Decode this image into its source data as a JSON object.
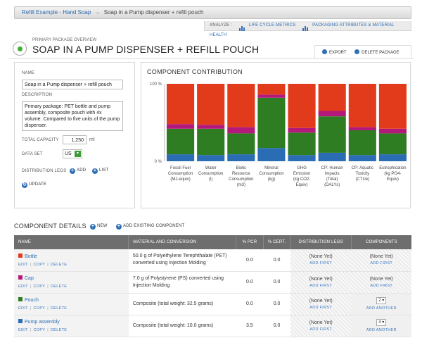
{
  "breadcrumb": {
    "link": "Refill Example - Hand Soap",
    "arrow": "→",
    "current": "Soap in a Pump dispenser + refill pouch"
  },
  "analyze": {
    "label": "ANALYZE :",
    "life_cycle": "LIFE CYCLE METRICS",
    "packaging": "PACKAGING ATTRIBUTES & MATERIAL HEALTH"
  },
  "header": {
    "overview_label": "PRIMARY PACKAGE OVERVIEW",
    "title": "SOAP IN A PUMP DISPENSER + REFILL POUCH",
    "export_label": "EXPORT",
    "delete_label": "DELETE PACKAGE"
  },
  "form": {
    "name_label": "NAME",
    "name_value": "Soap in a Pump dispenser + refill pouch",
    "description_label": "DESCRIPTION",
    "description_value": "Primary package: PET bottle and pump assembly, composite pouch with 4x volume. Compared to five units of the pump dispenser.",
    "capacity_label": "TOTAL CAPACITY",
    "capacity_value": "1,250",
    "capacity_unit": "ml",
    "dataset_label": "DATA SET",
    "dataset_value": "US",
    "legs_label": "DISTRIBUTION LEGS",
    "add_label": "ADD",
    "list_label": "LIST",
    "update_label": "UPDATE"
  },
  "chart_data": {
    "type": "bar",
    "stacked": true,
    "percent": true,
    "title": "COMPONENT CONTRIBUTION",
    "ytick_top": "100 %",
    "ytick_bottom": "0 %",
    "ylim": [
      0,
      100
    ],
    "categories": [
      "Fossil Fuel Consumption (MJ-equiv)",
      "Water Consumption (l)",
      "Biotic Resource Consumption (m3)",
      "Mineral Consumption (kg)",
      "GHG Emission (kg CO2-Equiv)",
      "CP: Human Impacts (Total) (DALYs)",
      "CP: Aquatic Toxicity (CTUe)",
      "Eutrophication (kg PO4-Equiv)"
    ],
    "category_lines": [
      [
        "Fossil Fuel",
        "Consumption",
        "(MJ-equiv)"
      ],
      [
        "Water",
        "Consumption",
        "(l)"
      ],
      [
        "Biotic",
        "Resource",
        "Consumption",
        "(m3)"
      ],
      [
        "Mineral",
        "Consumption",
        "(kg)"
      ],
      [
        "GHG",
        "Emission",
        "(kg CO2-",
        "Equiv)"
      ],
      [
        "CP: Human",
        "Impacts",
        "(Total)",
        "(DALYs)"
      ],
      [
        "CP: Aquatic",
        "Toxicity",
        "(CTUe)"
      ],
      [
        "Eutrophication",
        "(kg PO4-",
        "Equiv)"
      ]
    ],
    "series": [
      {
        "color": "#2a6db5",
        "values": [
          9,
          8,
          9,
          17,
          8,
          11,
          8,
          9
        ]
      },
      {
        "color": "#2e7d22",
        "values": [
          33,
          34,
          27,
          65,
          29,
          47,
          32,
          27
        ]
      },
      {
        "color": "#b3197b",
        "values": [
          6,
          5,
          8,
          4,
          6,
          7,
          4,
          6
        ]
      },
      {
        "color": "#e23b1c",
        "values": [
          52,
          53,
          56,
          14,
          57,
          35,
          56,
          58
        ]
      }
    ]
  },
  "components": {
    "section_title": "COMPONENT DETAILS",
    "new_label": "NEW",
    "add_existing_label": "ADD EXISTING COMPONENT",
    "columns": [
      "NAME",
      "MATERIAL AND CONVERSION",
      "% PCR",
      "% CERT.",
      "DISTRIBUTION LEGS",
      "COMPONENTS"
    ],
    "actions": [
      "EDIT",
      "COPY",
      "DELETE"
    ],
    "rows": [
      {
        "name": "Bottle",
        "color": "#e23b1c",
        "conversion": "50.0 g of Polyethylene Terephthalate (PET) converted using Injection Molding",
        "pcr": "0.0",
        "cert": "0.0",
        "legs": "(None Yet)",
        "legs_link": "ADD FIRST",
        "comp": "(None Yet)",
        "comp_link": "ADD FIRST",
        "qty": ""
      },
      {
        "name": "Cap",
        "color": "#b3197b",
        "conversion": "7.0 g of Polystyrene (PS) converted using Injection Molding",
        "pcr": "0.0",
        "cert": "0.0",
        "legs": "(None Yet)",
        "legs_link": "ADD FIRST",
        "comp": "(None Yet)",
        "comp_link": "ADD FIRST",
        "qty": ""
      },
      {
        "name": "Pouch",
        "color": "#2e7d22",
        "conversion": "Composite (total weight: 32.5 grams)",
        "pcr": "0.0",
        "cert": "0.0",
        "legs": "(None Yet)",
        "legs_link": "ADD FIRST",
        "comp": "",
        "comp_link": "ADD ANOTHER",
        "qty": "2"
      },
      {
        "name": "Pump assembly",
        "color": "#2a6db5",
        "conversion": "Composite (total weight: 10.0 grams)",
        "pcr": "3.5",
        "cert": "0.0",
        "legs": "(None Yet)",
        "legs_link": "ADD FIRST",
        "comp": "",
        "comp_link": "ADD ANOTHER",
        "qty": "4"
      }
    ]
  }
}
